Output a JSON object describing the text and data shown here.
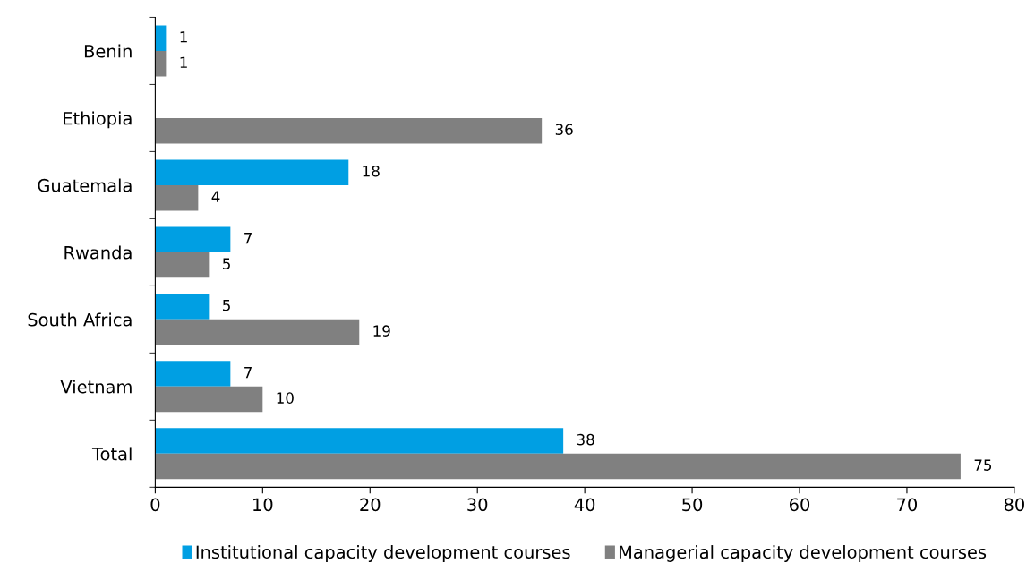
{
  "chart_data": {
    "type": "bar",
    "orientation": "horizontal",
    "categories": [
      "Benin",
      "Ethiopia",
      "Guatemala",
      "Rwanda",
      "South Africa",
      "Vietnam",
      "Total"
    ],
    "series": [
      {
        "name": "Institutional capacity development courses",
        "color": "#009fe3",
        "values": [
          1,
          null,
          18,
          7,
          5,
          7,
          38
        ]
      },
      {
        "name": "Managerial capacity development courses",
        "color": "#808080",
        "values": [
          1,
          36,
          4,
          5,
          19,
          10,
          75
        ]
      }
    ],
    "xlim": [
      0,
      80
    ],
    "xticks": [
      0,
      10,
      20,
      30,
      40,
      50,
      60,
      70,
      80
    ],
    "data_labels": true,
    "legend": "bottom",
    "grid": false
  }
}
